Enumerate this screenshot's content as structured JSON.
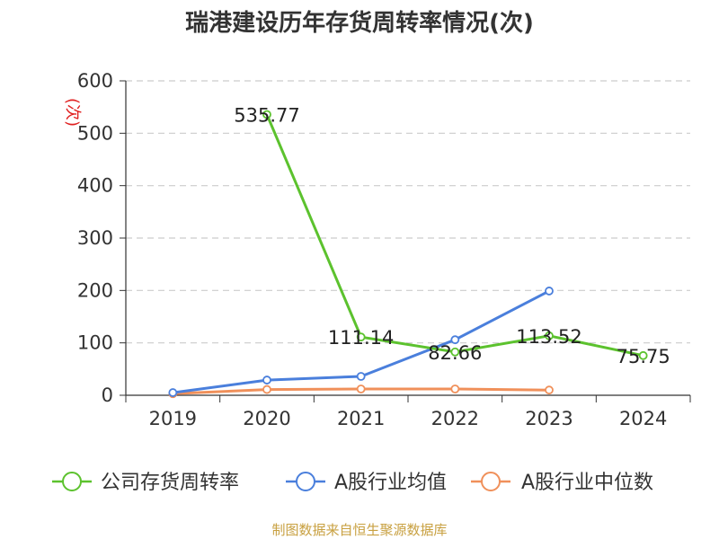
{
  "chart_data": {
    "type": "line",
    "title": "瑞港建设历年存货周转率情况(次)",
    "ylabel": "(次)",
    "xlabel": "",
    "categories": [
      "2019",
      "2020",
      "2021",
      "2022",
      "2023",
      "2024"
    ],
    "ylim": [
      0,
      600
    ],
    "yticks": [
      "0",
      "100",
      "200",
      "300",
      "400",
      "500",
      "600"
    ],
    "grid": true,
    "legend_position": "bottom",
    "series": [
      {
        "name": "公司存货周转率",
        "color": "#5cc22e",
        "values": [
          null,
          535.77,
          111.14,
          82.66,
          113.52,
          75.75
        ],
        "labels": [
          "",
          "535.77",
          "111.14",
          "82.66",
          "113.52",
          "75.75"
        ]
      },
      {
        "name": "A股行业均值",
        "color": "#4a7fdc",
        "values": [
          5,
          29,
          36,
          106,
          199,
          null
        ],
        "labels": []
      },
      {
        "name": "A股行业中位数",
        "color": "#f0905a",
        "values": [
          3,
          11,
          12,
          12,
          10,
          null
        ],
        "labels": []
      }
    ]
  },
  "footer": "制图数据来自恒生聚源数据库"
}
